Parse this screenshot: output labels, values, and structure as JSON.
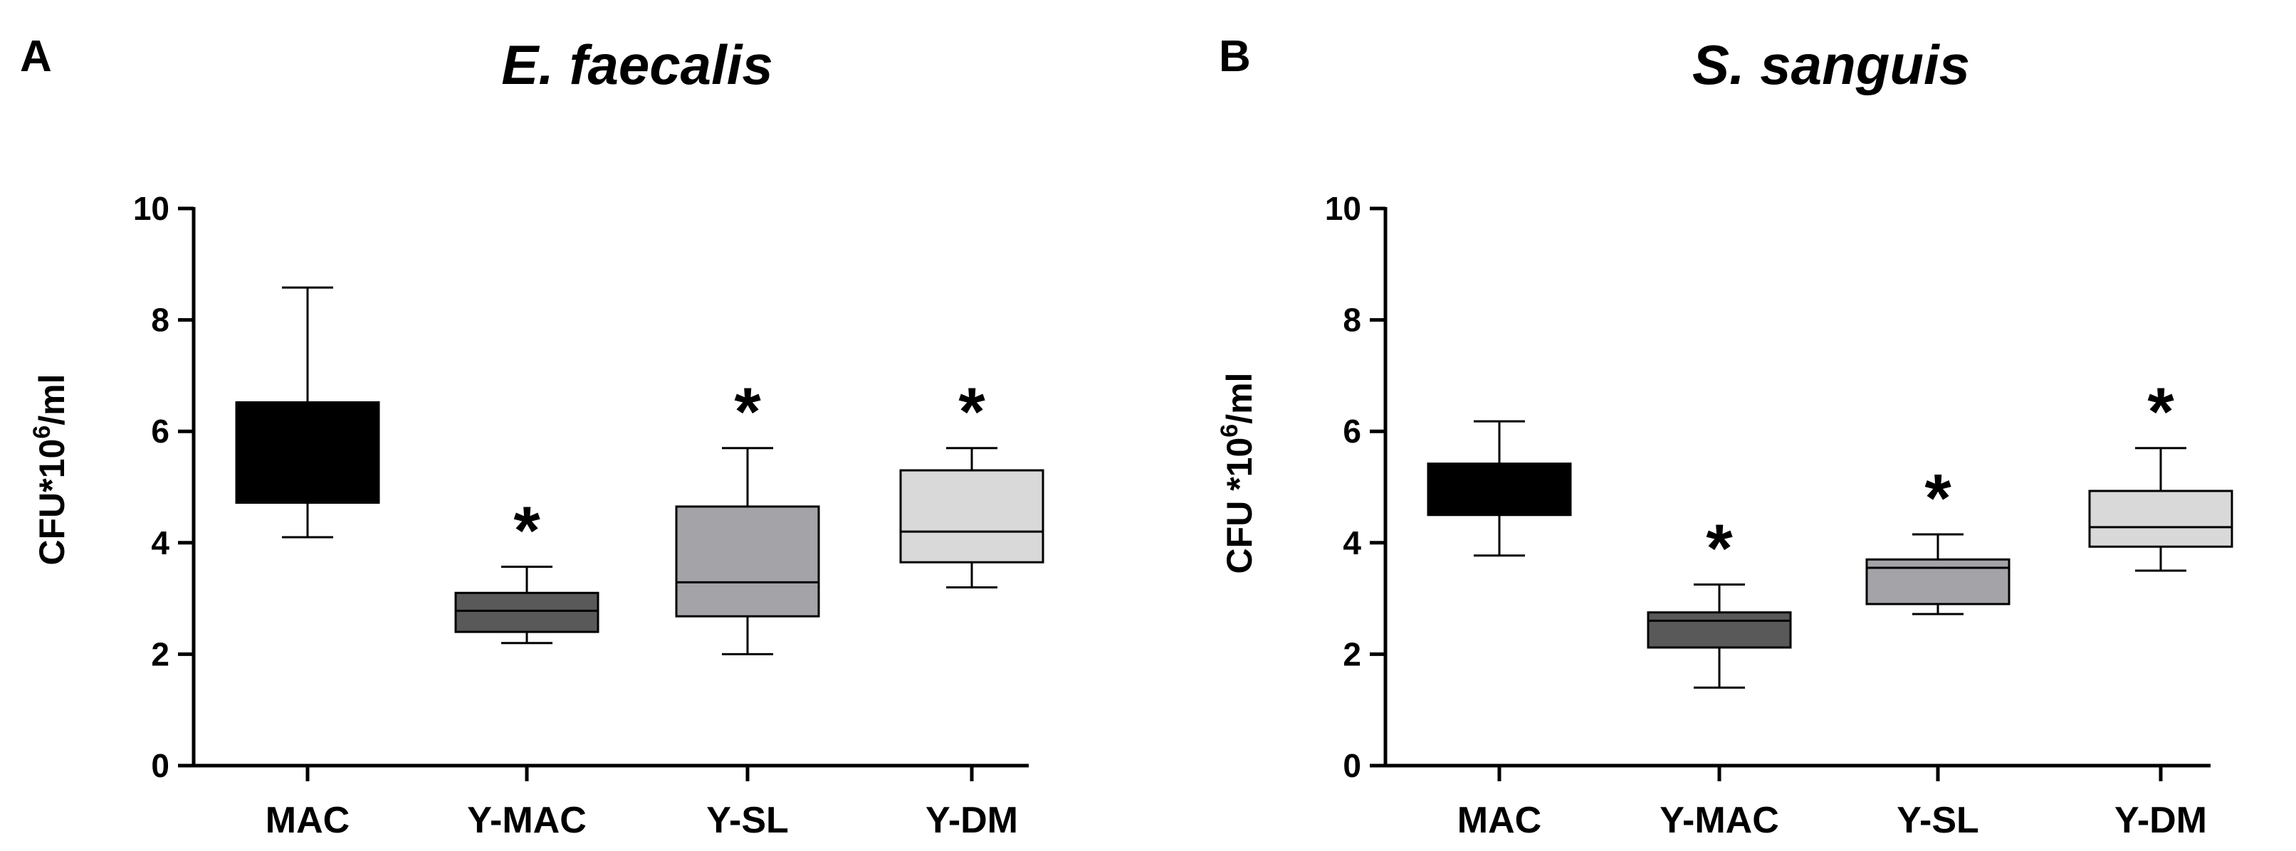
{
  "chart_data": [
    {
      "type": "box",
      "panel": "A",
      "title": "E. faecalis",
      "ylabel": {
        "main": "CFU*10",
        "sup": "6",
        "unit": "/ml"
      },
      "xlabel": "",
      "ylim": [
        0,
        10
      ],
      "yticks": [
        "0",
        "2",
        "4",
        "6",
        "8",
        "10"
      ],
      "categories": [
        "MAC",
        "Y-MAC",
        "Y-SL",
        "Y-DM"
      ],
      "colors": [
        "#000000",
        "#595959",
        "#a3a3a8",
        "#d9d9d9"
      ],
      "boxes": [
        {
          "min": 4.1,
          "q1": 4.72,
          "median": 4.72,
          "q3": 6.52,
          "max": 8.58,
          "sig": ""
        },
        {
          "min": 2.2,
          "q1": 2.4,
          "median": 2.78,
          "q3": 3.1,
          "max": 3.57,
          "sig": "*"
        },
        {
          "min": 2.0,
          "q1": 2.68,
          "median": 3.29,
          "q3": 4.65,
          "max": 5.7,
          "sig": "*"
        },
        {
          "min": 3.2,
          "q1": 3.65,
          "median": 4.2,
          "q3": 5.3,
          "max": 5.7,
          "sig": "*"
        }
      ]
    },
    {
      "type": "box",
      "panel": "B",
      "title": "S. sanguis",
      "ylabel": {
        "main": "CFU *10",
        "sup": "6",
        "unit": "/ml"
      },
      "xlabel": "",
      "ylim": [
        0,
        10
      ],
      "yticks": [
        "0",
        "2",
        "4",
        "6",
        "8",
        "10"
      ],
      "categories": [
        "MAC",
        "Y-MAC",
        "Y-SL",
        "Y-DM"
      ],
      "colors": [
        "#000000",
        "#595959",
        "#a3a3a8",
        "#d9d9d9"
      ],
      "boxes": [
        {
          "min": 3.77,
          "q1": 4.5,
          "median": 4.5,
          "q3": 5.42,
          "max": 6.18,
          "sig": ""
        },
        {
          "min": 1.4,
          "q1": 2.12,
          "median": 2.6,
          "q3": 2.75,
          "max": 3.25,
          "sig": "*"
        },
        {
          "min": 2.72,
          "q1": 2.9,
          "median": 3.55,
          "q3": 3.7,
          "max": 4.15,
          "sig": "*"
        },
        {
          "min": 3.5,
          "q1": 3.93,
          "median": 4.28,
          "q3": 4.93,
          "max": 5.7,
          "sig": "*"
        }
      ]
    }
  ]
}
